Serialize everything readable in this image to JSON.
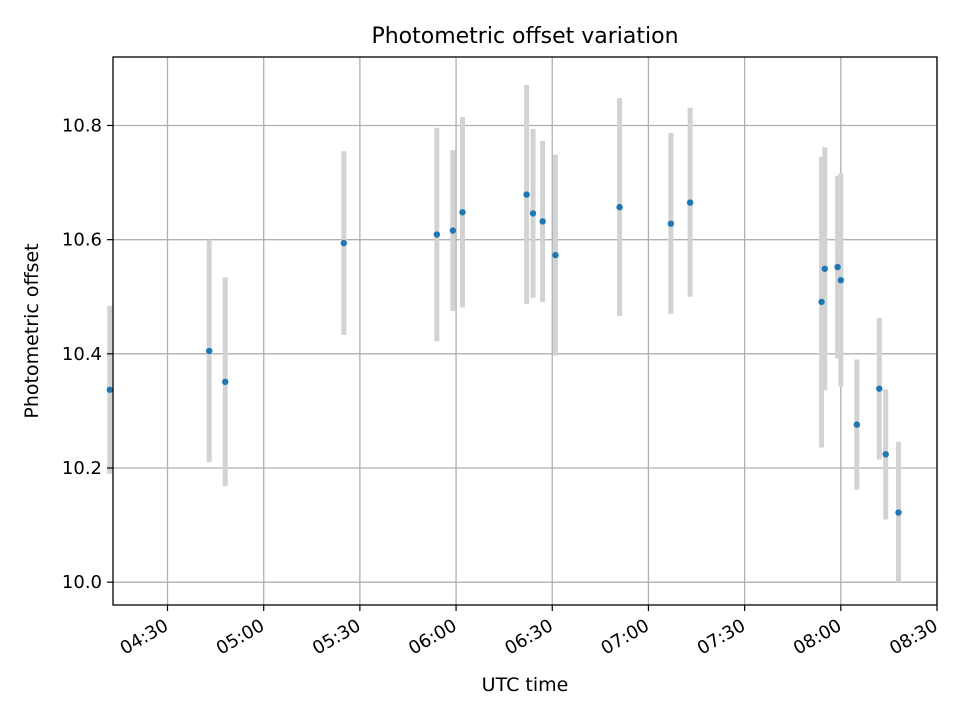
{
  "chart_data": {
    "type": "scatter",
    "title": "Photometric offset variation",
    "xlabel": "UTC time",
    "ylabel": "Photometric offset",
    "x_axis_type": "time",
    "xlim": [
      "04:13",
      "08:30"
    ],
    "ylim": [
      9.96,
      10.92
    ],
    "x_ticks": [
      "04:30",
      "05:00",
      "05:30",
      "06:00",
      "06:30",
      "07:00",
      "07:30",
      "08:00",
      "08:30"
    ],
    "y_ticks": [
      "10.0",
      "10.2",
      "10.4",
      "10.6",
      "10.8"
    ],
    "grid": true,
    "legend": false,
    "colors": {
      "point": "#1f77b4",
      "errorbar": "#d3d3d3",
      "grid": "#b0b0b0"
    },
    "points": [
      {
        "time": "04:12",
        "value": 10.337,
        "err_low": 10.19,
        "err_high": 10.484
      },
      {
        "time": "04:43",
        "value": 10.405,
        "err_low": 10.21,
        "err_high": 10.6
      },
      {
        "time": "04:48",
        "value": 10.351,
        "err_low": 10.168,
        "err_high": 10.534
      },
      {
        "time": "05:25",
        "value": 10.594,
        "err_low": 10.433,
        "err_high": 10.755
      },
      {
        "time": "05:54",
        "value": 10.609,
        "err_low": 10.422,
        "err_high": 10.796
      },
      {
        "time": "05:59",
        "value": 10.616,
        "err_low": 10.475,
        "err_high": 10.757
      },
      {
        "time": "06:02",
        "value": 10.648,
        "err_low": 10.481,
        "err_high": 10.815
      },
      {
        "time": "06:22",
        "value": 10.679,
        "err_low": 10.487,
        "err_high": 10.871
      },
      {
        "time": "06:24",
        "value": 10.646,
        "err_low": 10.498,
        "err_high": 10.794
      },
      {
        "time": "06:27",
        "value": 10.632,
        "err_low": 10.491,
        "err_high": 10.773
      },
      {
        "time": "06:31",
        "value": 10.573,
        "err_low": 10.397,
        "err_high": 10.749
      },
      {
        "time": "06:51",
        "value": 10.657,
        "err_low": 10.466,
        "err_high": 10.848
      },
      {
        "time": "07:07",
        "value": 10.628,
        "err_low": 10.47,
        "err_high": 10.787
      },
      {
        "time": "07:13",
        "value": 10.665,
        "err_low": 10.5,
        "err_high": 10.831
      },
      {
        "time": "07:54",
        "value": 10.491,
        "err_low": 10.236,
        "err_high": 10.745
      },
      {
        "time": "07:55",
        "value": 10.549,
        "err_low": 10.336,
        "err_high": 10.762
      },
      {
        "time": "07:59",
        "value": 10.552,
        "err_low": 10.392,
        "err_high": 10.712
      },
      {
        "time": "08:00",
        "value": 10.529,
        "err_low": 10.343,
        "err_high": 10.716
      },
      {
        "time": "08:05",
        "value": 10.276,
        "err_low": 10.162,
        "err_high": 10.39
      },
      {
        "time": "08:12",
        "value": 10.339,
        "err_low": 10.215,
        "err_high": 10.463
      },
      {
        "time": "08:14",
        "value": 10.224,
        "err_low": 10.11,
        "err_high": 10.338
      },
      {
        "time": "08:18",
        "value": 10.122,
        "err_low": 10.0,
        "err_high": 10.246
      }
    ]
  }
}
